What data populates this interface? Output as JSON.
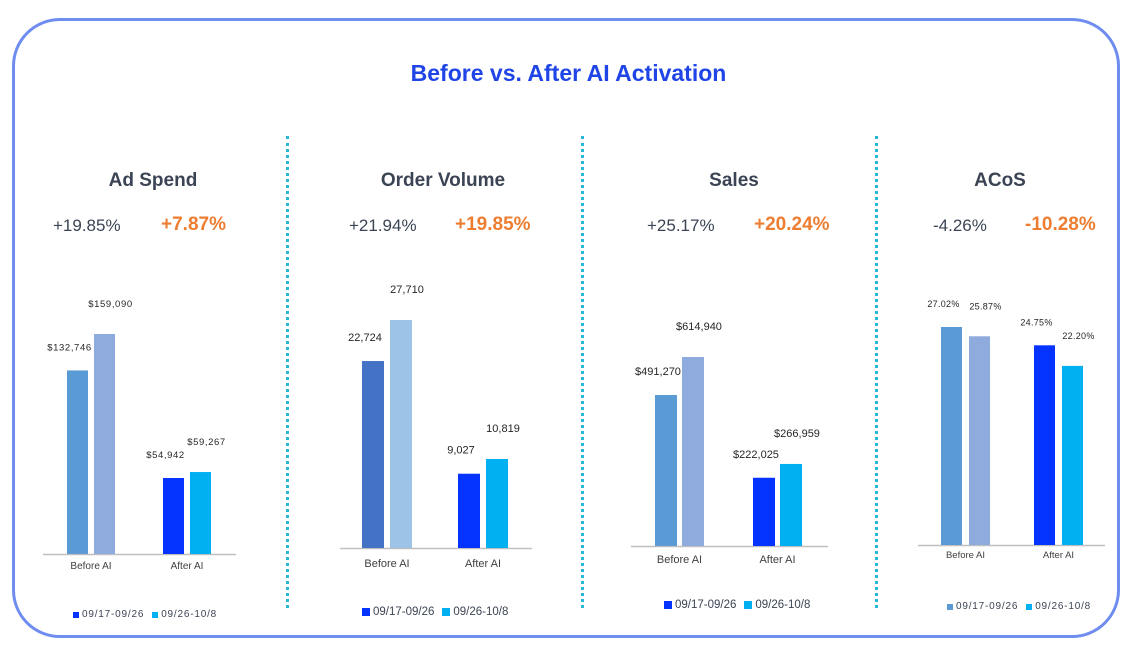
{
  "title": "Before vs. After AI Activation",
  "chart_data": [
    {
      "type": "bar",
      "title": "Ad Spend",
      "change_total": "+19.85%",
      "change_highlight": "+7.87%",
      "categories": [
        "Before AI",
        "After AI"
      ],
      "series": [
        {
          "name": "09/17-09/26",
          "values": [
            132746,
            54942
          ],
          "colors": [
            "#5b9bd5",
            "#0433ff"
          ]
        },
        {
          "name": "09/26-10/8",
          "values": [
            159090,
            59267
          ],
          "colors": [
            "#8faadc",
            "#00b0f0"
          ]
        }
      ],
      "data_labels": [
        [
          "$132,746",
          "$54,942"
        ],
        [
          "$159,090",
          "$59,267"
        ]
      ],
      "legend_colors": [
        "#0433ff",
        "#00b0f0"
      ],
      "ylim": [
        0,
        180000
      ]
    },
    {
      "type": "bar",
      "title": "Order Volume",
      "change_total": "+21.94%",
      "change_highlight": "+19.85%",
      "categories": [
        "Before AI",
        "After AI"
      ],
      "series": [
        {
          "name": "09/17-09/26",
          "values": [
            22724,
            9027
          ],
          "colors": [
            "#4472c4",
            "#0433ff"
          ]
        },
        {
          "name": "09/26-10/8",
          "values": [
            27710,
            10819
          ],
          "colors": [
            "#9dc3e6",
            "#00b0f0"
          ]
        }
      ],
      "data_labels": [
        [
          "22,724",
          "9,027"
        ],
        [
          "27,710",
          "10,819"
        ]
      ],
      "legend_colors": [
        "#0433ff",
        "#00b0f0"
      ],
      "ylim": [
        0,
        31000
      ]
    },
    {
      "type": "bar",
      "title": "Sales",
      "change_total": "+25.17%",
      "change_highlight": "+20.24%",
      "categories": [
        "Before AI",
        "After AI"
      ],
      "series": [
        {
          "name": "09/17-09/26",
          "values": [
            491270,
            222025
          ],
          "colors": [
            "#5b9bd5",
            "#0433ff"
          ]
        },
        {
          "name": "09/26-10/8",
          "values": [
            614940,
            266959
          ],
          "colors": [
            "#8faadc",
            "#00b0f0"
          ]
        }
      ],
      "data_labels": [
        [
          "$491,270",
          "$222,025"
        ],
        [
          "$614,940",
          "$266,959"
        ]
      ],
      "legend_colors": [
        "#0433ff",
        "#00b0f0"
      ],
      "ylim": [
        0,
        700000
      ]
    },
    {
      "type": "bar",
      "title": "ACoS",
      "change_total": "-4.26%",
      "change_highlight": "-10.28%",
      "categories": [
        "Before AI",
        "After AI"
      ],
      "series": [
        {
          "name": "09/17-09/26",
          "values": [
            27.02,
            24.75
          ],
          "colors": [
            "#5b9bd5",
            "#0433ff"
          ]
        },
        {
          "name": "09/26-10/8",
          "values": [
            25.87,
            22.2
          ],
          "colors": [
            "#8faadc",
            "#00b0f0"
          ]
        }
      ],
      "data_labels": [
        [
          "27.02%",
          "24.75%"
        ],
        [
          "25.87%",
          "22.20%"
        ]
      ],
      "legend_colors": [
        "#5b9bd5",
        "#00b0f0"
      ],
      "ylim": [
        0,
        28.5
      ]
    }
  ]
}
